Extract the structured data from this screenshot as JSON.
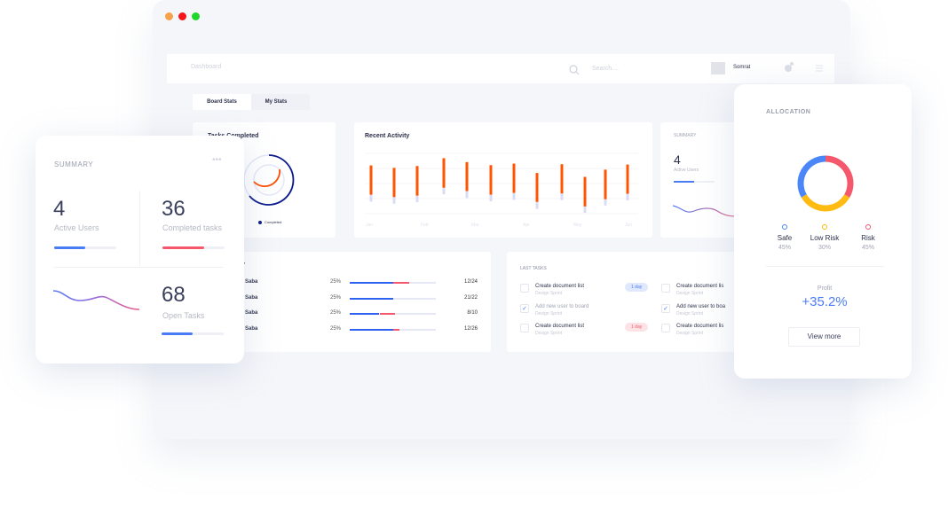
{
  "window": {
    "controls": [
      {
        "name": "minimize",
        "color": "#f7a24b"
      },
      {
        "name": "close",
        "color": "#f5151b"
      },
      {
        "name": "maximize",
        "color": "#20d62b"
      }
    ]
  },
  "header": {
    "title": "Dashboard",
    "search_placeholder": "Search....",
    "user": "Somrat"
  },
  "tabs": [
    {
      "label": "Board Stats",
      "active": true
    },
    {
      "label": "My Stats",
      "active": false
    }
  ],
  "tasks_completed": {
    "title": "Tasks Completed",
    "legend": "Completed",
    "colors": {
      "outer": "#0b1a8c",
      "inner": "#ff4d00"
    }
  },
  "chart_data": {
    "type": "bar",
    "title": "Recent Activity",
    "x_tick_labels": [
      "Jan",
      "Feb",
      "Mar",
      "Apr",
      "May",
      "Jun"
    ],
    "grid": true,
    "ylim": [
      0,
      4
    ],
    "series": [
      {
        "role": "range-top",
        "values": [
          3.2,
          3.04,
          3.16,
          3.68,
          3.42,
          3.22,
          3.32,
          2.7,
          3.28,
          2.44,
          2.92,
          3.26
        ]
      },
      {
        "role": "range-bottom",
        "values": [
          1.26,
          1.1,
          1.2,
          1.72,
          1.5,
          1.26,
          1.38,
          0.78,
          1.34,
          0.48,
          0.96,
          1.32
        ]
      },
      {
        "role": "tail-bottom",
        "values": [
          0.8,
          0.66,
          0.76,
          1.28,
          1.04,
          0.82,
          0.92,
          0.32,
          0.9,
          0.06,
          0.54,
          0.88
        ]
      }
    ],
    "colors": {
      "bar": "#ff5400",
      "tail": "#d8dcf5"
    }
  },
  "summary_small": {
    "title": "SUMMARY",
    "value": "4",
    "label": "Active Users"
  },
  "activity": {
    "title_fragment": "y",
    "rows": [
      {
        "name": "Saba",
        "pct": "25%",
        "blue": 0.5,
        "red": 0.18,
        "ratio": "12/24"
      },
      {
        "name": "Saba",
        "pct": "25%",
        "blue": 0.5,
        "red": 0,
        "ratio": "21/22"
      },
      {
        "name": "Saba",
        "pct": "25%",
        "blue": 0.34,
        "red": 0.18,
        "ratio": "8/10"
      },
      {
        "name": "Saba",
        "pct": "25%",
        "blue": 0.5,
        "red": 0.07,
        "ratio": "12/26"
      }
    ]
  },
  "last_tasks": {
    "title": "LAST TASKS",
    "columns": [
      [
        {
          "title": "Create document list",
          "sub": "Design Sprint",
          "checked": false,
          "badge": "1 day",
          "badge_type": "blue"
        },
        {
          "title": "Add new user to board",
          "sub": "Design Sprint",
          "checked": true,
          "badge": ""
        },
        {
          "title": "Create document list",
          "sub": "Design Sprint",
          "checked": false,
          "badge": "1 day",
          "badge_type": "red"
        }
      ],
      [
        {
          "title": "Create document lis",
          "sub": "Design Sprint",
          "checked": false
        },
        {
          "title": "Add new user to boa",
          "sub": "Design Sprint",
          "checked": true
        },
        {
          "title": "Create document lis",
          "sub": "Design Sprint",
          "checked": false
        }
      ]
    ]
  },
  "summary": {
    "title": "SUMMARY",
    "stats": [
      {
        "value": "4",
        "label": "Active Users",
        "progress": 0.5,
        "color": "#4a7cf6"
      },
      {
        "value": "36",
        "label": "Completed tasks",
        "progress": 0.67,
        "color": "#f5576c"
      },
      {
        "value": "68",
        "label": "Open Tasks",
        "progress": 0.5,
        "color": "#4a7cf6"
      }
    ]
  },
  "allocation": {
    "title": "ALLOCATION",
    "items": [
      {
        "label": "Safe",
        "value": "45%",
        "color": "#4a86f7"
      },
      {
        "label": "Low Risk",
        "value": "30%",
        "color": "#ffbb12"
      },
      {
        "label": "Risk",
        "value": "45%",
        "color": "#f5576c"
      }
    ],
    "profit_label": "Profit",
    "profit_value": "+35.2%",
    "button": "View more"
  }
}
